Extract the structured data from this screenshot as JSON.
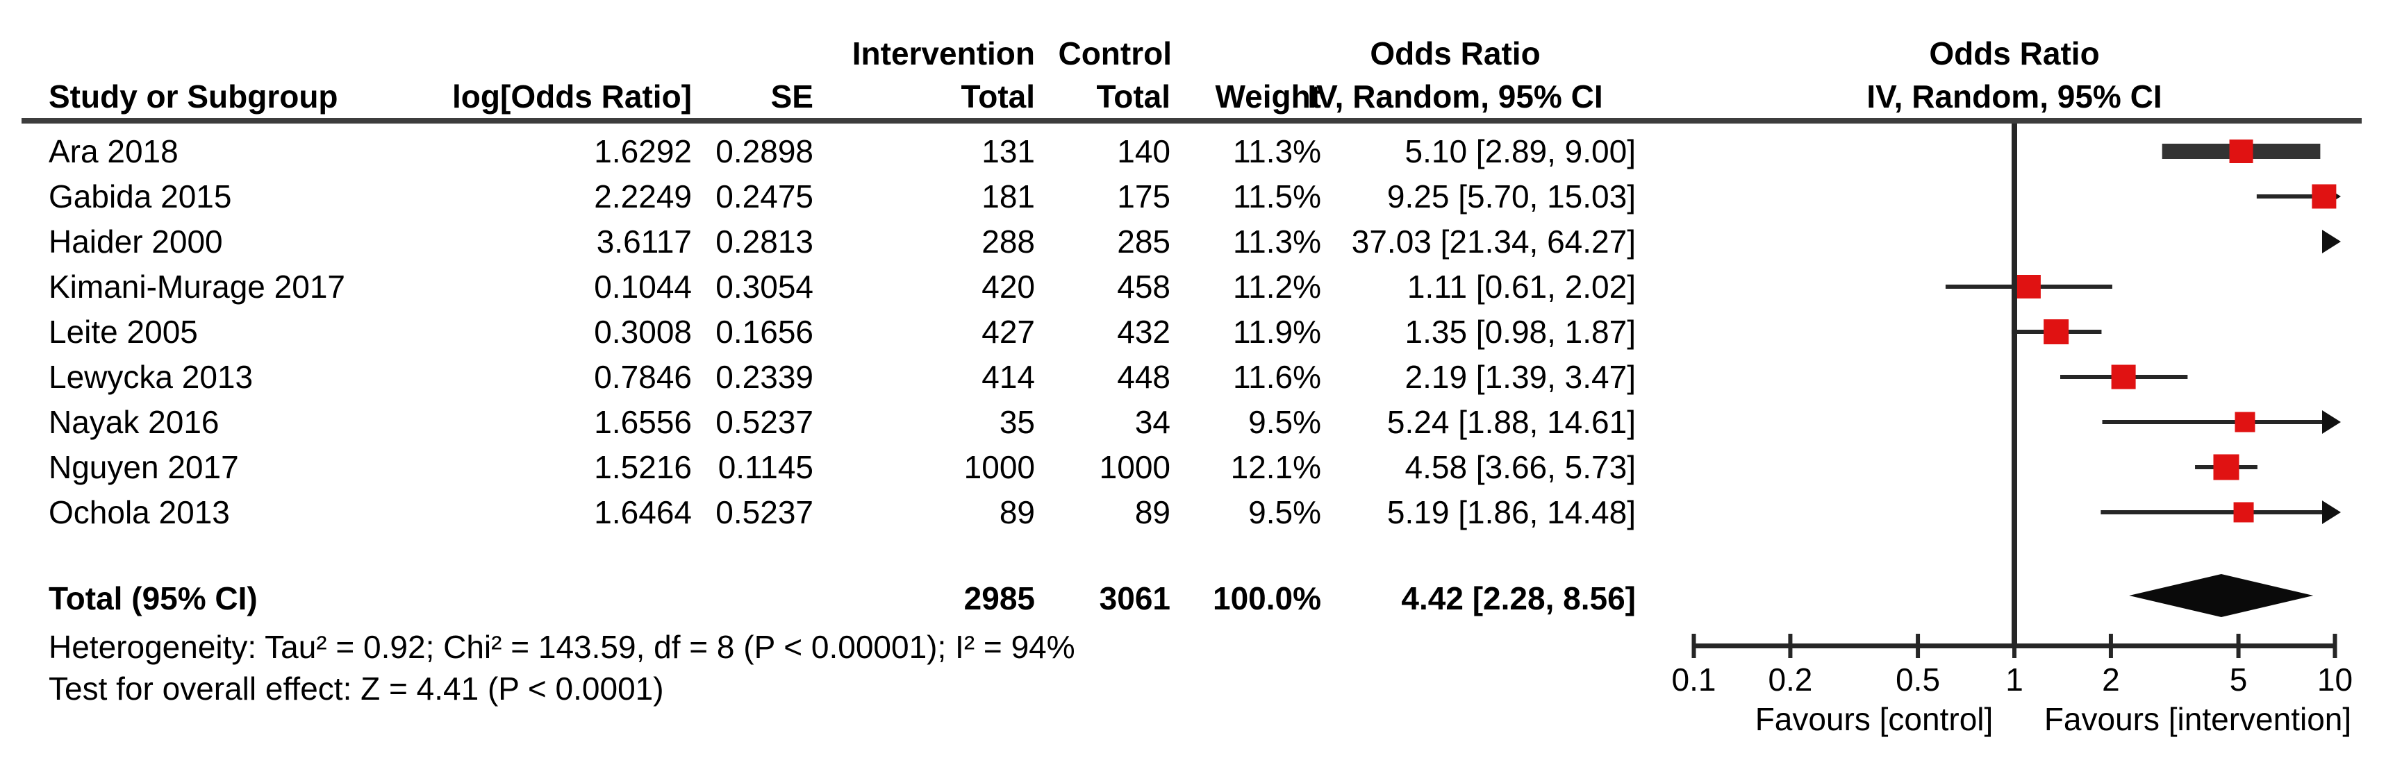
{
  "header": {
    "group1": "Intervention",
    "group2": "Control",
    "or_title_left": "Odds Ratio",
    "or_title_right": "Odds Ratio",
    "study": "Study or Subgroup",
    "logor": "log[Odds Ratio]",
    "se": "SE",
    "total1": "Total",
    "total2": "Total",
    "weight": "Weight",
    "method_left": "IV, Random, 95% CI",
    "method_right": "IV, Random, 95% CI"
  },
  "rows": [
    {
      "study": "Ara 2018",
      "logor": "1.6292",
      "se": "0.2898",
      "t1": "131",
      "t2": "140",
      "weight": "11.3%",
      "ci": "5.10 [2.89, 9.00]"
    },
    {
      "study": "Gabida 2015",
      "logor": "2.2249",
      "se": "0.2475",
      "t1": "181",
      "t2": "175",
      "weight": "11.5%",
      "ci": "9.25 [5.70, 15.03]"
    },
    {
      "study": "Haider 2000",
      "logor": "3.6117",
      "se": "0.2813",
      "t1": "288",
      "t2": "285",
      "weight": "11.3%",
      "ci": "37.03 [21.34, 64.27]"
    },
    {
      "study": "Kimani-Murage 2017",
      "logor": "0.1044",
      "se": "0.3054",
      "t1": "420",
      "t2": "458",
      "weight": "11.2%",
      "ci": "1.11 [0.61, 2.02]"
    },
    {
      "study": "Leite 2005",
      "logor": "0.3008",
      "se": "0.1656",
      "t1": "427",
      "t2": "432",
      "weight": "11.9%",
      "ci": "1.35 [0.98, 1.87]"
    },
    {
      "study": "Lewycka 2013",
      "logor": "0.7846",
      "se": "0.2339",
      "t1": "414",
      "t2": "448",
      "weight": "11.6%",
      "ci": "2.19 [1.39, 3.47]"
    },
    {
      "study": "Nayak 2016",
      "logor": "1.6556",
      "se": "0.5237",
      "t1": "35",
      "t2": "34",
      "weight": "9.5%",
      "ci": "5.24 [1.88, 14.61]"
    },
    {
      "study": "Nguyen 2017",
      "logor": "1.5216",
      "se": "0.1145",
      "t1": "1000",
      "t2": "1000",
      "weight": "12.1%",
      "ci": "4.58 [3.66, 5.73]"
    },
    {
      "study": "Ochola 2013",
      "logor": "1.6464",
      "se": "0.5237",
      "t1": "89",
      "t2": "89",
      "weight": "9.5%",
      "ci": "5.19 [1.86, 14.48]"
    }
  ],
  "total_row": {
    "label": "Total (95% CI)",
    "t1": "2985",
    "t2": "3061",
    "weight": "100.0%",
    "ci": "4.42 [2.28, 8.56]"
  },
  "footer": {
    "heterogeneity": "Heterogeneity: Tau² = 0.92; Chi² = 143.59, df = 8 (P < 0.00001); I² = 94%",
    "overall_effect": "Test for overall effect: Z = 4.41 (P < 0.0001)"
  },
  "chart_data": {
    "type": "forest",
    "effect_measure": "Odds Ratio, IV, Random, 95% CI",
    "x_scale": "log10",
    "xlim": [
      0.1,
      10
    ],
    "x_ticks": [
      0.1,
      0.2,
      0.5,
      1,
      2,
      5,
      10
    ],
    "x_tick_labels": [
      "0.1",
      "0.2",
      "0.5",
      "1",
      "2",
      "5",
      "10"
    ],
    "no_effect_x": 1,
    "favours_left": "Favours [control]",
    "favours_right": "Favours [intervention]",
    "studies": [
      {
        "name": "Ara 2018",
        "or": 5.1,
        "lo": 2.89,
        "hi": 9.0,
        "weight_pct": 11.3,
        "thick": true
      },
      {
        "name": "Gabida 2015",
        "or": 9.25,
        "lo": 5.7,
        "hi": 15.03,
        "weight_pct": 11.5
      },
      {
        "name": "Haider 2000",
        "or": 37.03,
        "lo": 21.34,
        "hi": 64.27,
        "weight_pct": 11.3
      },
      {
        "name": "Kimani-Murage 2017",
        "or": 1.11,
        "lo": 0.61,
        "hi": 2.02,
        "weight_pct": 11.2
      },
      {
        "name": "Leite 2005",
        "or": 1.35,
        "lo": 0.98,
        "hi": 1.87,
        "weight_pct": 11.9
      },
      {
        "name": "Lewycka 2013",
        "or": 2.19,
        "lo": 1.39,
        "hi": 3.47,
        "weight_pct": 11.6
      },
      {
        "name": "Nayak 2016",
        "or": 5.24,
        "lo": 1.88,
        "hi": 14.61,
        "weight_pct": 9.5
      },
      {
        "name": "Nguyen 2017",
        "or": 4.58,
        "lo": 3.66,
        "hi": 5.73,
        "weight_pct": 12.1
      },
      {
        "name": "Ochola 2013",
        "or": 5.19,
        "lo": 1.86,
        "hi": 14.48,
        "weight_pct": 9.5
      }
    ],
    "total": {
      "or": 4.42,
      "lo": 2.28,
      "hi": 8.56
    }
  },
  "colors": {
    "marker_red": "#e01212",
    "line_dark": "#262626",
    "ara_bar": "#333333",
    "rule_gray": "#3d3d3d",
    "diamond": "#0a0a0a"
  }
}
